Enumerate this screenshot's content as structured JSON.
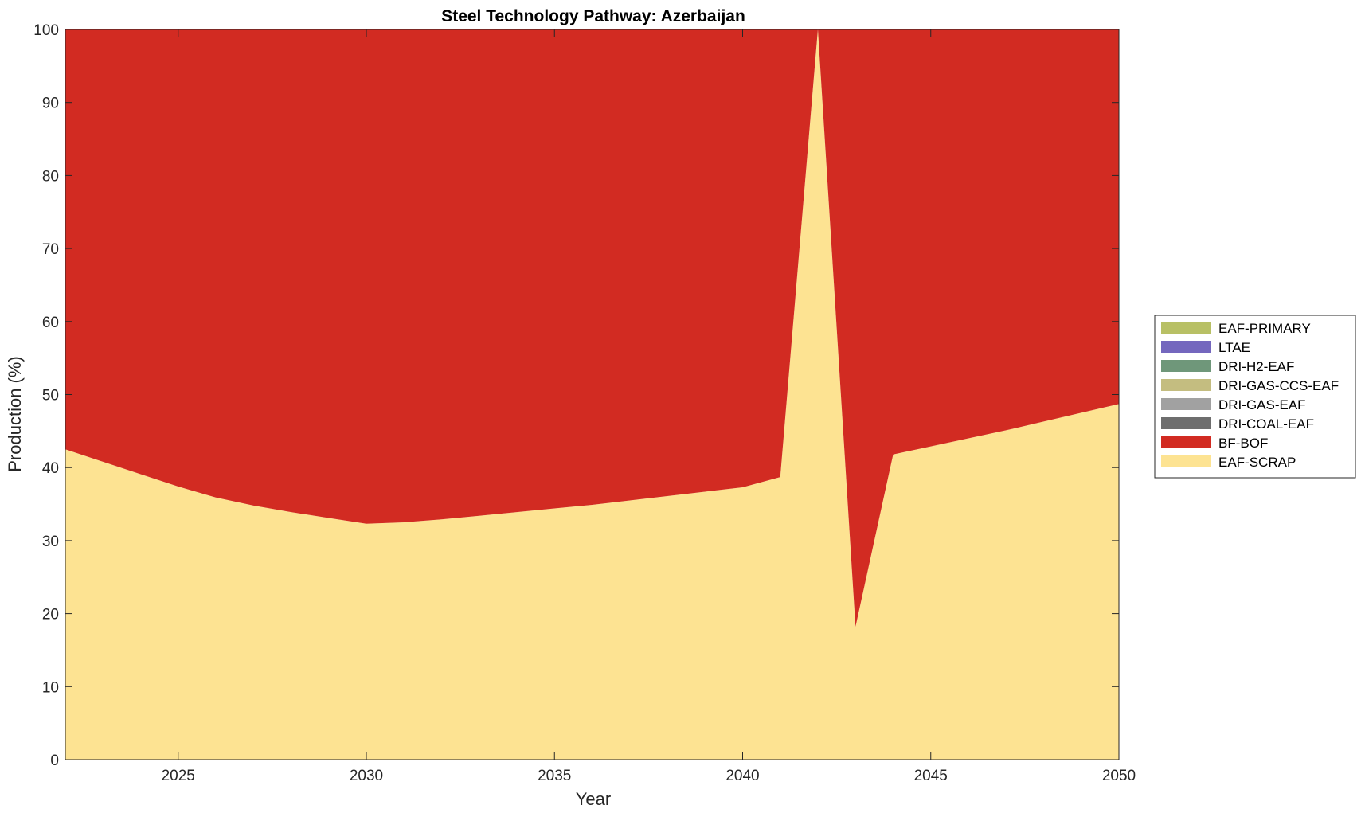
{
  "chart_data": {
    "type": "area",
    "stacked": true,
    "title": "Steel Technology Pathway: Azerbaijan",
    "xlabel": "Year",
    "ylabel": "Production (%)",
    "xlim": [
      2022,
      2050
    ],
    "ylim": [
      0,
      100
    ],
    "xticks": [
      "2025",
      "2030",
      "2035",
      "2040",
      "2045",
      "2050"
    ],
    "yticks": [
      "0",
      "10",
      "20",
      "30",
      "40",
      "50",
      "60",
      "70",
      "80",
      "90",
      "100"
    ],
    "grid": false,
    "legend_position": "right",
    "x": [
      2022,
      2023,
      2024,
      2025,
      2026,
      2027,
      2028,
      2029,
      2030,
      2031,
      2032,
      2033,
      2034,
      2035,
      2036,
      2037,
      2038,
      2039,
      2040,
      2041,
      2042,
      2043,
      2044,
      2045,
      2046,
      2047,
      2048,
      2049,
      2050
    ],
    "series": [
      {
        "name": "EAF-SCRAP",
        "color": "#fde392",
        "values": [
          42.5,
          40.8,
          39.1,
          37.4,
          35.9,
          34.8,
          33.9,
          33.1,
          32.3,
          32.5,
          32.9,
          33.4,
          33.9,
          34.4,
          34.9,
          35.5,
          36.1,
          36.7,
          37.3,
          38.7,
          100,
          18.2,
          41.8,
          42.9,
          44.0,
          45.1,
          46.3,
          47.5,
          48.7
        ]
      },
      {
        "name": "BF-BOF",
        "color": "#d22b22",
        "values": [
          57.5,
          59.2,
          60.9,
          62.6,
          64.1,
          65.2,
          66.1,
          66.9,
          67.7,
          67.5,
          67.1,
          66.6,
          66.1,
          65.6,
          65.1,
          64.5,
          63.9,
          63.3,
          62.7,
          61.3,
          0,
          81.8,
          58.2,
          57.1,
          56.0,
          54.9,
          53.7,
          52.5,
          51.3
        ]
      },
      {
        "name": "DRI-COAL-EAF",
        "color": "#6e6e6e",
        "values": [
          0,
          0,
          0,
          0,
          0,
          0,
          0,
          0,
          0,
          0,
          0,
          0,
          0,
          0,
          0,
          0,
          0,
          0,
          0,
          0,
          0,
          0,
          0,
          0,
          0,
          0,
          0,
          0,
          0
        ]
      },
      {
        "name": "DRI-GAS-EAF",
        "color": "#a1a1a1",
        "values": [
          0,
          0,
          0,
          0,
          0,
          0,
          0,
          0,
          0,
          0,
          0,
          0,
          0,
          0,
          0,
          0,
          0,
          0,
          0,
          0,
          0,
          0,
          0,
          0,
          0,
          0,
          0,
          0,
          0
        ]
      },
      {
        "name": "DRI-GAS-CCS-EAF",
        "color": "#c4bd80",
        "values": [
          0,
          0,
          0,
          0,
          0,
          0,
          0,
          0,
          0,
          0,
          0,
          0,
          0,
          0,
          0,
          0,
          0,
          0,
          0,
          0,
          0,
          0,
          0,
          0,
          0,
          0,
          0,
          0,
          0
        ]
      },
      {
        "name": "DRI-H2-EAF",
        "color": "#6f977a",
        "values": [
          0,
          0,
          0,
          0,
          0,
          0,
          0,
          0,
          0,
          0,
          0,
          0,
          0,
          0,
          0,
          0,
          0,
          0,
          0,
          0,
          0,
          0,
          0,
          0,
          0,
          0,
          0,
          0,
          0
        ]
      },
      {
        "name": "LTAE",
        "color": "#7467be",
        "values": [
          0,
          0,
          0,
          0,
          0,
          0,
          0,
          0,
          0,
          0,
          0,
          0,
          0,
          0,
          0,
          0,
          0,
          0,
          0,
          0,
          0,
          0,
          0,
          0,
          0,
          0,
          0,
          0,
          0
        ]
      },
      {
        "name": "EAF-PRIMARY",
        "color": "#b8c065",
        "values": [
          0,
          0,
          0,
          0,
          0,
          0,
          0,
          0,
          0,
          0,
          0,
          0,
          0,
          0,
          0,
          0,
          0,
          0,
          0,
          0,
          0,
          0,
          0,
          0,
          0,
          0,
          0,
          0,
          0
        ]
      }
    ],
    "legend_order": [
      "EAF-PRIMARY",
      "LTAE",
      "DRI-H2-EAF",
      "DRI-GAS-CCS-EAF",
      "DRI-GAS-EAF",
      "DRI-COAL-EAF",
      "BF-BOF",
      "EAF-SCRAP"
    ]
  }
}
